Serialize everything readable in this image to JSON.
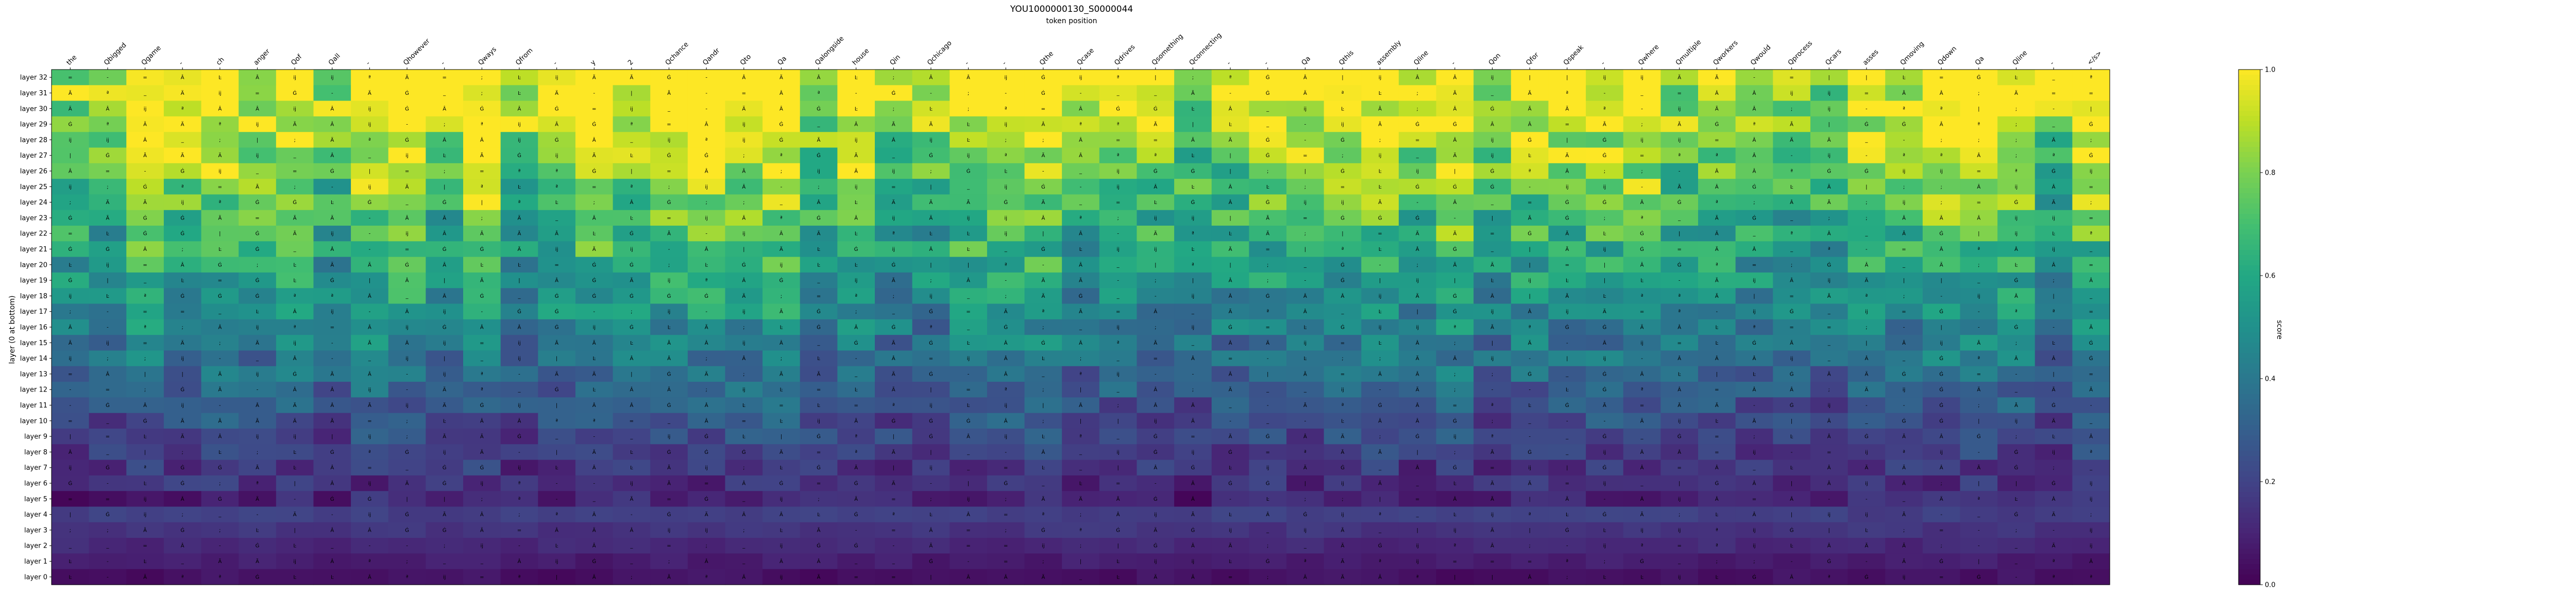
{
  "chart_data": {
    "type": "heatmap",
    "title": "YOU1000000130_S0000044",
    "xlabel": "token position",
    "ylabel": "layer (0 at bottom)",
    "colorbar_label": "score",
    "colormap": "viridis",
    "zlim": [
      0.0,
      1.0
    ],
    "colorbar_ticks": [
      "0.0",
      "0.2",
      "0.4",
      "0.6",
      "0.8",
      "1.0"
    ],
    "x_tick_labels": [
      "the",
      "Qbigged",
      "Qgame",
      "-",
      "ch",
      "anger",
      "Qof",
      "Qall",
      "-",
      "Qhowever",
      "-",
      "Qways",
      "Qfrom",
      "-",
      "y",
      "2",
      "Qchance",
      "Qandr",
      "Qto",
      "Qa",
      "Qalongside",
      "house",
      "Qin",
      "Qchicago",
      "-",
      "-",
      "Qthe",
      "Qcase",
      "Qdrives",
      "Qsomething",
      "Qconnecting",
      "-",
      "-",
      "Qa",
      "Qthis",
      "assembly",
      "Qline",
      "-",
      "Qon",
      "Qfor",
      "Qspeak",
      "-",
      "Qwhere",
      "Qmultiple",
      "Qworkers",
      "Qwould",
      "Qprocess",
      "Qcars",
      "asses",
      "Qmoving",
      "Qdown",
      "Qa",
      "Qline",
      "-",
      "</s>"
    ],
    "y_tick_labels": [
      "layer 32",
      "layer 31",
      "layer 30",
      "layer 29",
      "layer 28",
      "layer 27",
      "layer 26",
      "layer 25",
      "layer 24",
      "layer 23",
      "layer 22",
      "layer 21",
      "layer 20",
      "layer 19",
      "layer 18",
      "layer 17",
      "layer 16",
      "layer 15",
      "layer 14",
      "layer 13",
      "layer 12",
      "layer 11",
      "layer 10",
      "layer 9",
      "layer 8",
      "layer 7",
      "layer 6",
      "layer 5",
      "layer 4",
      "layer 3",
      "layer 2",
      "layer 1",
      "layer 0"
    ],
    "cell_tokens": [
      "Ä",
      "ij",
      "Â",
      "Ã",
      "=",
      "|",
      "-",
      "Ġ",
      "_",
      "Ŀ",
      "ĳ",
      ";",
      "ª",
      "Â",
      "Ġ"
    ]
  }
}
